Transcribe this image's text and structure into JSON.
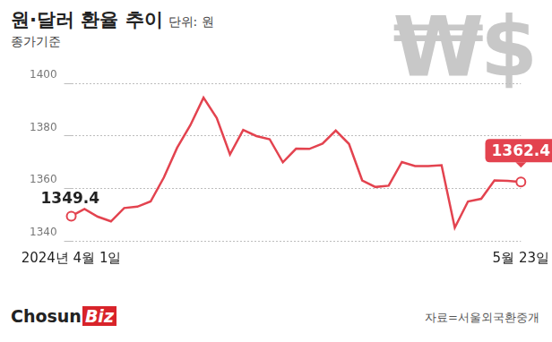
{
  "chart_data": {
    "type": "line",
    "title": "원·달러 환율 추이",
    "y_label": "단위: 원",
    "subtitle": "종가기준",
    "symbol": "₩$",
    "logo": [
      "Chosun",
      "Biz"
    ],
    "source": "자료=서울외국환중개",
    "categories": [
      "2024년 4월 1일",
      null,
      null,
      null,
      null,
      null,
      null,
      null,
      null,
      null,
      null,
      null,
      null,
      null,
      null,
      null,
      null,
      null,
      null,
      null,
      null,
      null,
      null,
      null,
      null,
      null,
      null,
      null,
      null,
      null,
      null,
      null,
      null,
      null,
      "5월 23일"
    ],
    "values": [
      1349.4,
      1352.1,
      1349.2,
      1347.4,
      1352.5,
      1353.0,
      1355.0,
      1364.1,
      1375.4,
      1384.0,
      1394.5,
      1386.8,
      1372.9,
      1382.2,
      1379.9,
      1378.7,
      1369.9,
      1375.1,
      1375.0,
      1377.0,
      1382.0,
      1376.9,
      1363.0,
      1360.5,
      1361.0,
      1370.0,
      1368.5,
      1368.5,
      1368.8,
      1345.0,
      1355.0,
      1356.0,
      1363.0,
      1362.8,
      1362.4
    ],
    "value_labels": [
      "1349.4",
      null,
      null,
      null,
      null,
      null,
      null,
      null,
      null,
      null,
      null,
      null,
      null,
      null,
      null,
      null,
      null,
      null,
      null,
      null,
      null,
      null,
      null,
      null,
      null,
      null,
      null,
      null,
      null,
      null,
      null,
      null,
      null,
      null,
      "1362.4"
    ],
    "data_labels": true,
    "color": "#e3434f",
    "ylim": [
      1340,
      1400
    ],
    "yticks": [
      1340,
      1360,
      1380,
      1400
    ],
    "grid": true
  }
}
